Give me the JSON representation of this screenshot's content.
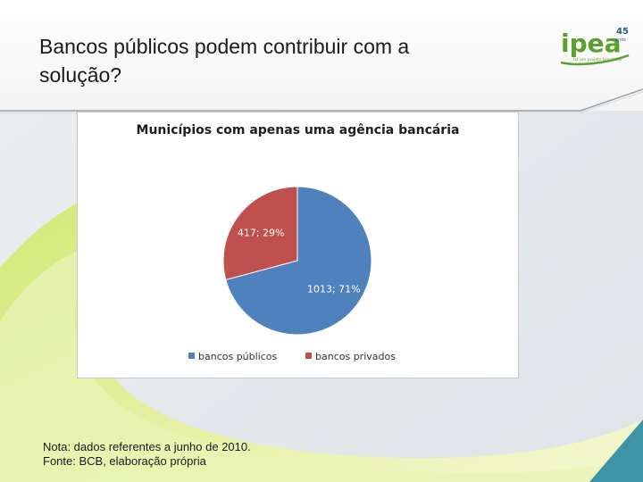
{
  "slide": {
    "title_line1": "Bancos públicos podem contribuir com a",
    "title_line2": "solução?",
    "logo": {
      "text": "ipea",
      "badge": "45",
      "badge_sub": "anos",
      "tagline": "há um projeto brasileiro"
    },
    "footnote_line1": "Nota: dados referentes a junho de 2010.",
    "footnote_line2": "Fonte: BCB, elaboração própria",
    "colors": {
      "accent_green": "#5aa02c",
      "lime": "#d7ec6a",
      "logo_blue": "#1b5a8c"
    }
  },
  "chart_data": {
    "type": "pie",
    "title": "Municípios com apenas uma agência bancária",
    "slices": [
      {
        "label": "bancos públicos",
        "value": 1013,
        "percent": 71,
        "data_label": "1013; 71%",
        "color": "#4f81bd"
      },
      {
        "label": "bancos privados",
        "value": 417,
        "percent": 29,
        "data_label": "417; 29%",
        "color": "#c0504d"
      }
    ],
    "legend": "bottom"
  }
}
